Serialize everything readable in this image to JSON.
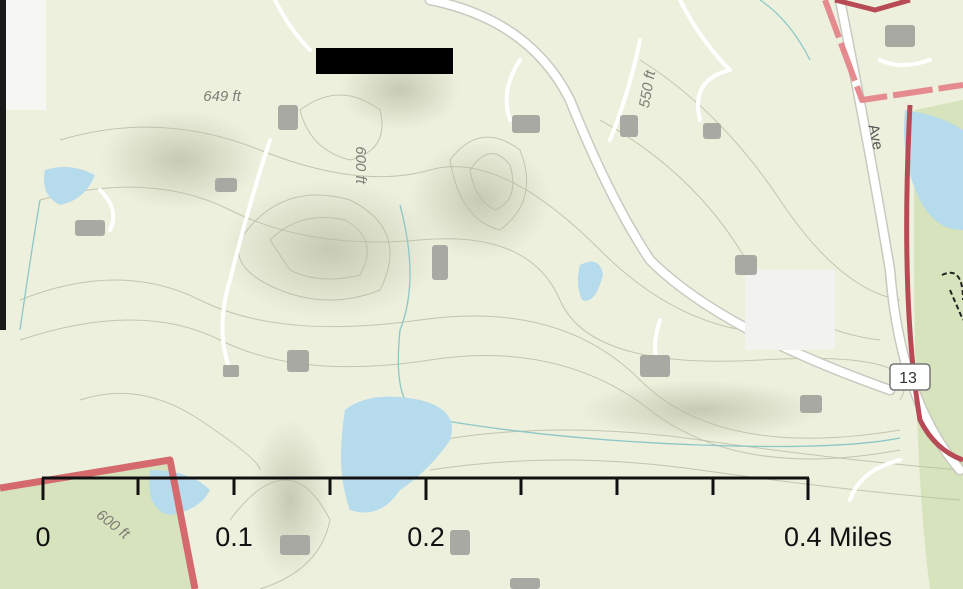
{
  "map": {
    "labels": [
      {
        "text": "649 ft"
      },
      {
        "text": "600 ft"
      },
      {
        "text": "550 ft"
      },
      {
        "text": "Ave"
      },
      {
        "text": "600 ft"
      }
    ],
    "route_shield": "13",
    "scale_bar": {
      "labels": [
        "0",
        "0.1",
        "0.2",
        "0.4 Miles"
      ]
    }
  }
}
